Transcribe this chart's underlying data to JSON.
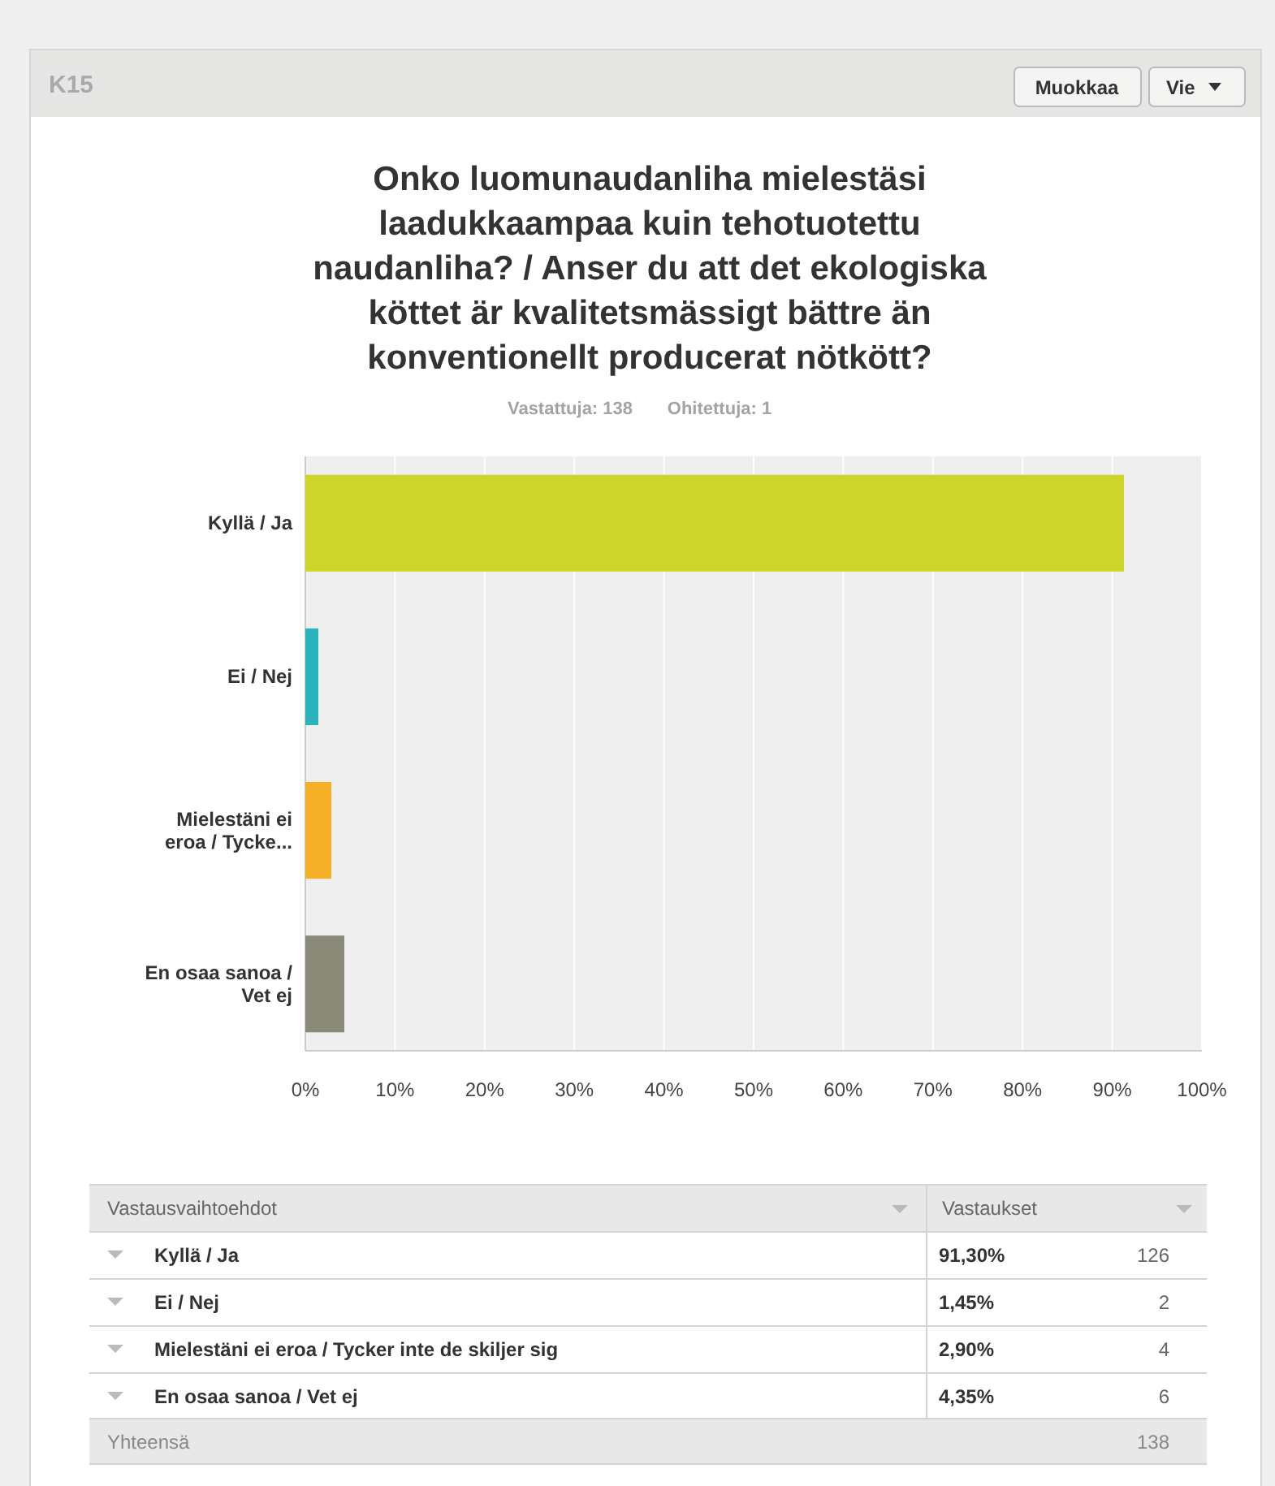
{
  "chart_data": {
    "type": "bar",
    "orientation": "horizontal",
    "title": "Onko luomunaudanliha mielestäsi laadukkaampaa kuin tehotuotettu naudanliha? / Anser du att det ekologiska köttet är kvalitetsmässigt bättre än konventionellt producerat nötkött?",
    "categories": [
      "Kyllä / Ja",
      "Ei / Nej",
      "Mielestäni ei eroa / Tycke...",
      "En osaa sanoa / Vet ej"
    ],
    "values": [
      91.3,
      1.45,
      2.9,
      4.35
    ],
    "colors": [
      "#cdd42a",
      "#2ab5bd",
      "#f6b027",
      "#8b8a78"
    ],
    "xlim": [
      0,
      100
    ],
    "xticks": [
      {
        "value": 0,
        "label": "0%"
      },
      {
        "value": 10,
        "label": "10%"
      },
      {
        "value": 20,
        "label": "20%"
      },
      {
        "value": 30,
        "label": "30%"
      },
      {
        "value": 40,
        "label": "40%"
      },
      {
        "value": 50,
        "label": "50%"
      },
      {
        "value": 60,
        "label": "60%"
      },
      {
        "value": 70,
        "label": "70%"
      },
      {
        "value": 80,
        "label": "80%"
      },
      {
        "value": 90,
        "label": "90%"
      },
      {
        "value": 100,
        "label": "100%"
      }
    ],
    "grid": "x",
    "annotations": [
      "K15",
      "Muokkaa",
      "Vie",
      "Vastattuja: 138",
      "Ohitettuja: 1",
      "Vastausvaihtoehdot",
      "Vastaukset",
      "Kyllä / Ja",
      "Ei / Nej",
      "Mielestäni ei eroa / Tycker inte de skiljer sig",
      "En osaa sanoa / Vet ej",
      "91,30%",
      "1,45%",
      "2,90%",
      "4,35%",
      "126",
      "2",
      "4",
      "6",
      "Yhteensä",
      "138"
    ]
  }
}
